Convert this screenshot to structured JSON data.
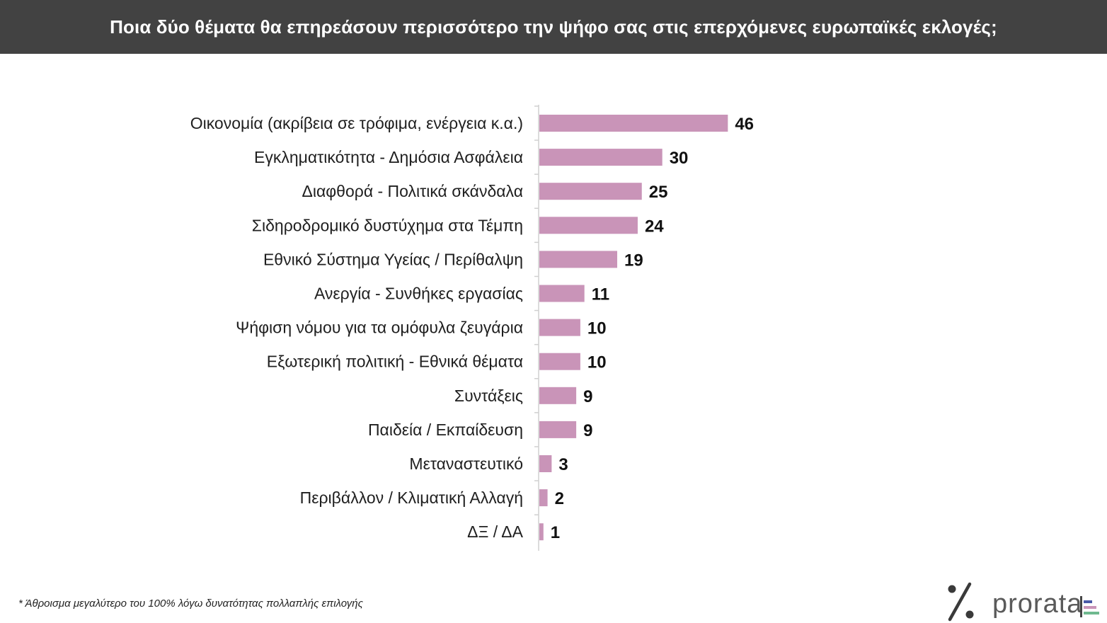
{
  "header": {
    "title": "Ποια δύο θέματα θα επηρεάσουν περισσότερο την ψήφο σας στις επερχόμενες ευρωπαϊκές εκλογές;"
  },
  "chart_data": {
    "type": "bar",
    "orientation": "horizontal",
    "title": "Ποια δύο θέματα θα επηρεάσουν περισσότερο την ψήφο σας στις επερχόμενες ευρωπαϊκές εκλογές;",
    "categories": [
      "Οικονομία (ακρίβεια σε τρόφιμα, ενέργεια κ.α.)",
      "Εγκληματικότητα - Δημόσια Ασφάλεια",
      "Διαφθορά - Πολιτικά σκάνδαλα",
      "Σιδηροδρομικό δυστύχημα στα Τέμπη",
      "Εθνικό Σύστημα Υγείας / Περίθαλψη",
      "Ανεργία - Συνθήκες εργασίας",
      "Ψήφιση νόμου για τα ομόφυλα ζευγάρια",
      "Εξωτερική πολιτική - Εθνικά θέματα",
      "Συντάξεις",
      "Παιδεία / Εκπαίδευση",
      "Μεταναστευτικό",
      "Περιβάλλον / Κλιματική Αλλαγή",
      "ΔΞ / ΔΑ"
    ],
    "values": [
      46,
      30,
      25,
      24,
      19,
      11,
      10,
      10,
      9,
      9,
      3,
      2,
      1
    ],
    "xlabel": "",
    "ylabel": "",
    "xlim": [
      0,
      50
    ],
    "grid": false,
    "legend": "none",
    "bar_color": "#c994b8",
    "axis_color": "#d0d0d0"
  },
  "footnote": "* Άθροισμα μεγαλύτερο του 100% λόγω δυνατότητας πολλαπλής επιλογής",
  "logo": {
    "text": "prorata",
    "accent_colors": [
      "#4a5aa8",
      "#c994b8",
      "#6fb98f"
    ]
  }
}
